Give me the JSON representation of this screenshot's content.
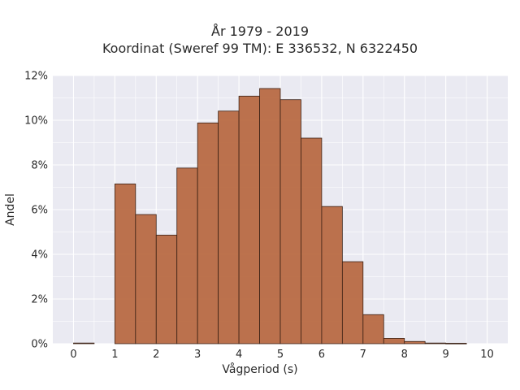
{
  "chart_data": {
    "type": "bar",
    "title": "År 1979 - 2019",
    "subtitle": "Koordinat (Sweref 99 TM): E 336532, N 6322450",
    "xlabel": "Vågperiod (s)",
    "ylabel": "Andel",
    "xlim": [
      -0.5,
      10.5
    ],
    "ylim": [
      0,
      12
    ],
    "xticks": [
      0,
      1,
      2,
      3,
      4,
      5,
      6,
      7,
      8,
      9,
      10
    ],
    "yticks": [
      0,
      2,
      4,
      6,
      8,
      10,
      12
    ],
    "ytick_labels": [
      "0%",
      "2%",
      "4%",
      "6%",
      "8%",
      "10%",
      "12%"
    ],
    "bin_width": 0.5,
    "bin_starts": [
      0,
      0.5,
      1,
      1.5,
      2,
      2.5,
      3,
      3.5,
      4,
      4.5,
      5,
      5.5,
      6,
      6.5,
      7,
      7.5,
      8,
      8.5,
      9,
      9.5
    ],
    "values": [
      0.03,
      0,
      7.15,
      5.78,
      4.86,
      7.86,
      9.88,
      10.41,
      11.08,
      11.42,
      10.92,
      9.2,
      6.14,
      3.67,
      1.3,
      0.24,
      0.1,
      0.03,
      0.02,
      0
    ],
    "bar_color": "#b86a43",
    "edge_color": "#3a2014",
    "background_color": "#eaeaf2",
    "grid": true
  }
}
